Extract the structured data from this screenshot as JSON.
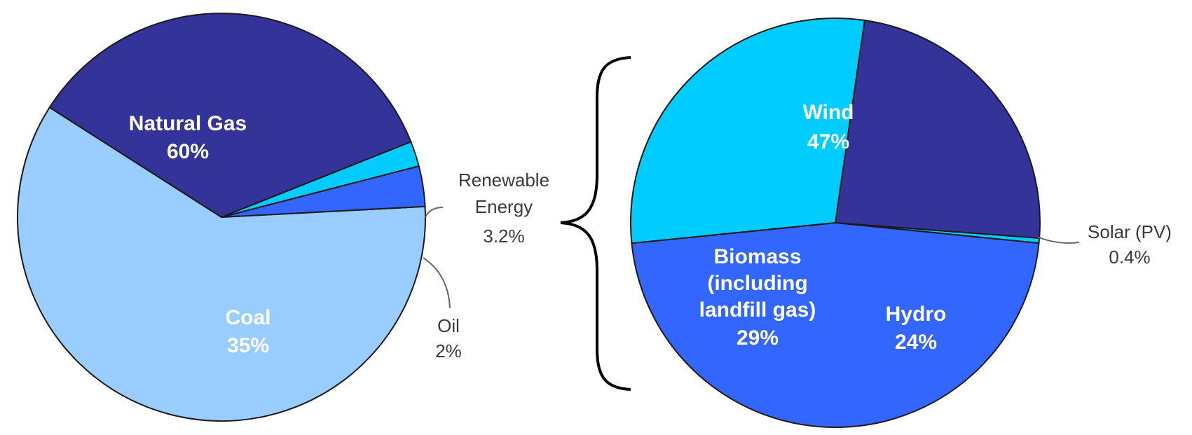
{
  "chart_data": [
    {
      "type": "pie",
      "title": "",
      "slices": [
        {
          "label": "Natural Gas",
          "value": 60,
          "value_label": "60%",
          "color": "#99CCFF"
        },
        {
          "label": "Renewable Energy",
          "value": 3.2,
          "value_label": "3.2%",
          "color": "#3366FF"
        },
        {
          "label": "Oil",
          "value": 2,
          "value_label": "2%",
          "color": "#00CCFF"
        },
        {
          "label": "Coal",
          "value": 35,
          "value_label": "35%",
          "color": "#333399"
        }
      ],
      "callout_lines": [
        "Renewable",
        "Energy",
        "3.2%"
      ],
      "oil_lines": [
        "Oil",
        "2%"
      ]
    },
    {
      "type": "pie",
      "title": "",
      "slices": [
        {
          "label": "Wind",
          "value": 47,
          "value_label": "47%",
          "color": "#3366FF"
        },
        {
          "label": "Solar (PV)",
          "value": 0.4,
          "value_label": "0.4%",
          "color": "#00CCFF"
        },
        {
          "label": "Hydro",
          "value": 24,
          "value_label": "24%",
          "color": "#333399"
        },
        {
          "label": "Biomass (including landfill gas)",
          "value": 29,
          "value_label": "29%",
          "color": "#00CCFF"
        }
      ],
      "biomass_lines": [
        "Biomass",
        "(including",
        "landfill gas)",
        "29%"
      ],
      "solar_lines": [
        "Solar (PV)",
        "0.4%"
      ]
    }
  ]
}
